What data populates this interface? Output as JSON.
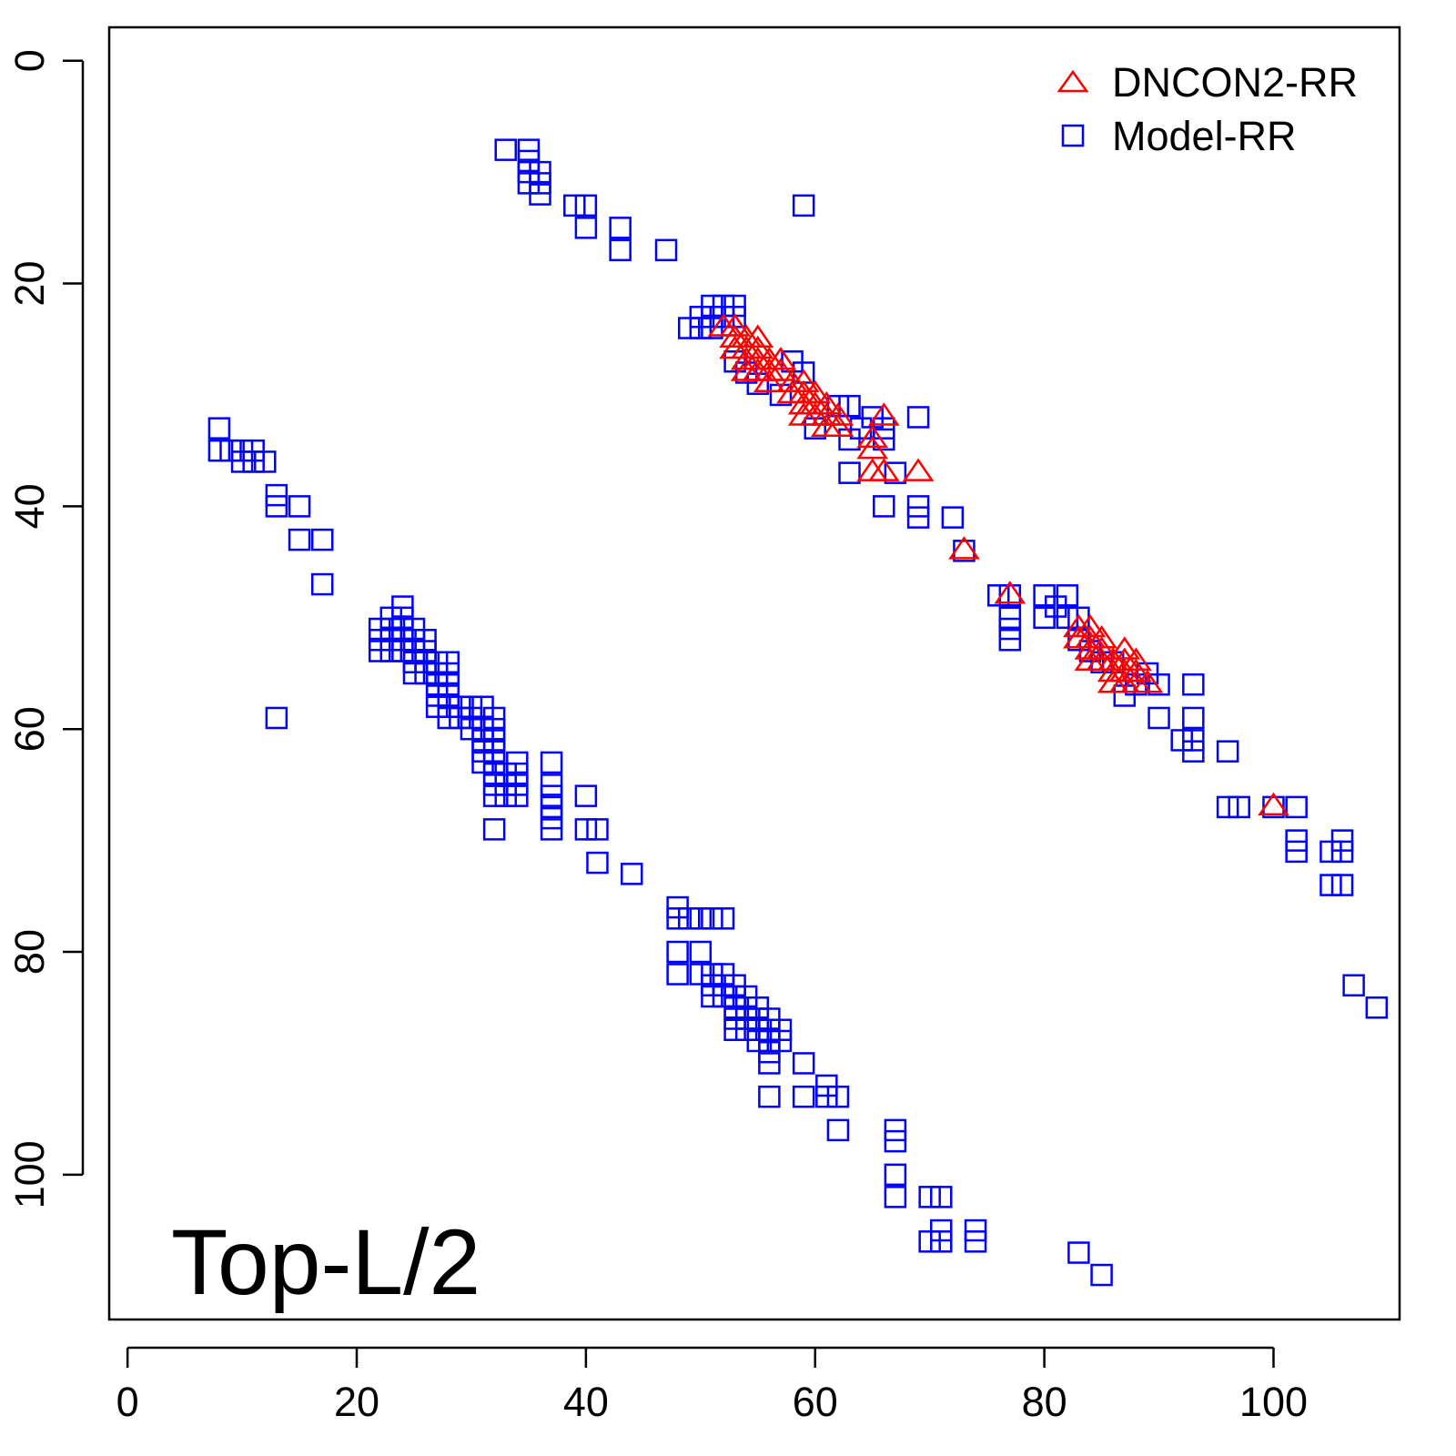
{
  "chart_data": {
    "type": "scatter",
    "title": "",
    "xlabel": "",
    "ylabel": "",
    "xlim": [
      -1.6,
      111
    ],
    "ylim": [
      -3,
      113
    ],
    "y_reversed": true,
    "grid": false,
    "legend_position": "top-right",
    "x_ticks": [
      0,
      20,
      40,
      60,
      80,
      100
    ],
    "y_ticks": [
      0,
      20,
      40,
      60,
      80,
      100
    ],
    "panel_label": "Top-L/2",
    "series": [
      {
        "name": "DNCON2-RR",
        "marker": "triangle",
        "color": "#ff0000",
        "points": [
          [
            52,
            24
          ],
          [
            53,
            24
          ],
          [
            53,
            25
          ],
          [
            53,
            26
          ],
          [
            54,
            25
          ],
          [
            54,
            26
          ],
          [
            54,
            27
          ],
          [
            55,
            25
          ],
          [
            55,
            26
          ],
          [
            55,
            27
          ],
          [
            55,
            28
          ],
          [
            54,
            28
          ],
          [
            56,
            27
          ],
          [
            56,
            28
          ],
          [
            56,
            29
          ],
          [
            57,
            27
          ],
          [
            57,
            28
          ],
          [
            58,
            29
          ],
          [
            58,
            30
          ],
          [
            59,
            29
          ],
          [
            59,
            30
          ],
          [
            59,
            31
          ],
          [
            59,
            32
          ],
          [
            60,
            30
          ],
          [
            60,
            31
          ],
          [
            60,
            32
          ],
          [
            61,
            31
          ],
          [
            61,
            32
          ],
          [
            61,
            33
          ],
          [
            62,
            32
          ],
          [
            62,
            33
          ],
          [
            65,
            34
          ],
          [
            65,
            35
          ],
          [
            66,
            32
          ],
          [
            65,
            37
          ],
          [
            66,
            37
          ],
          [
            69,
            37
          ],
          [
            73,
            44
          ],
          [
            77,
            48
          ],
          [
            83,
            51
          ],
          [
            83,
            52
          ],
          [
            84,
            51
          ],
          [
            84,
            52
          ],
          [
            84,
            53
          ],
          [
            84,
            54
          ],
          [
            85,
            52
          ],
          [
            85,
            53
          ],
          [
            85,
            54
          ],
          [
            86,
            54
          ],
          [
            86,
            55
          ],
          [
            86,
            56
          ],
          [
            87,
            53
          ],
          [
            87,
            54
          ],
          [
            87,
            55
          ],
          [
            87,
            56
          ],
          [
            88,
            54
          ],
          [
            88,
            55
          ],
          [
            88,
            56
          ],
          [
            89,
            56
          ],
          [
            100,
            67
          ]
        ]
      },
      {
        "name": "Model-RR",
        "marker": "square",
        "color": "#0000ff",
        "points": [
          [
            33,
            8
          ],
          [
            35,
            8
          ],
          [
            35,
            9
          ],
          [
            35,
            10
          ],
          [
            35,
            11
          ],
          [
            36,
            10
          ],
          [
            36,
            11
          ],
          [
            36,
            12
          ],
          [
            39,
            13
          ],
          [
            40,
            13
          ],
          [
            40,
            15
          ],
          [
            43,
            15
          ],
          [
            43,
            17
          ],
          [
            47,
            17
          ],
          [
            59,
            13
          ],
          [
            49,
            24
          ],
          [
            50,
            23
          ],
          [
            50,
            24
          ],
          [
            51,
            22
          ],
          [
            51,
            23
          ],
          [
            51,
            24
          ],
          [
            52,
            22
          ],
          [
            52,
            23
          ],
          [
            53,
            22
          ],
          [
            53,
            23
          ],
          [
            53,
            27
          ],
          [
            54,
            28
          ],
          [
            55,
            29
          ],
          [
            57,
            30
          ],
          [
            58,
            27
          ],
          [
            59,
            28
          ],
          [
            60,
            33
          ],
          [
            62,
            31
          ],
          [
            63,
            31
          ],
          [
            63,
            34
          ],
          [
            63,
            37
          ],
          [
            64,
            33
          ],
          [
            65,
            32
          ],
          [
            66,
            33
          ],
          [
            66,
            34
          ],
          [
            67,
            37
          ],
          [
            66,
            40
          ],
          [
            69,
            32
          ],
          [
            69,
            40
          ],
          [
            69,
            41
          ],
          [
            72,
            41
          ],
          [
            73,
            44
          ],
          [
            76,
            48
          ],
          [
            77,
            48
          ],
          [
            77,
            50
          ],
          [
            77,
            51
          ],
          [
            77,
            52
          ],
          [
            80,
            48
          ],
          [
            80,
            50
          ],
          [
            81,
            49
          ],
          [
            82,
            48
          ],
          [
            82,
            50
          ],
          [
            83,
            50
          ],
          [
            83,
            52
          ],
          [
            84,
            53
          ],
          [
            85,
            54
          ],
          [
            86,
            54
          ],
          [
            87,
            57
          ],
          [
            88,
            56
          ],
          [
            89,
            55
          ],
          [
            90,
            56
          ],
          [
            90,
            59
          ],
          [
            92,
            61
          ],
          [
            93,
            56
          ],
          [
            93,
            59
          ],
          [
            93,
            61
          ],
          [
            93,
            62
          ],
          [
            96,
            62
          ],
          [
            96,
            67
          ],
          [
            97,
            67
          ],
          [
            100,
            67
          ],
          [
            102,
            67
          ],
          [
            102,
            70
          ],
          [
            102,
            71
          ],
          [
            105,
            71
          ],
          [
            105,
            74
          ],
          [
            106,
            70
          ],
          [
            106,
            71
          ],
          [
            106,
            74
          ],
          [
            107,
            83
          ],
          [
            109,
            85
          ],
          [
            8,
            33
          ],
          [
            8,
            35
          ],
          [
            9,
            35
          ],
          [
            10,
            35
          ],
          [
            10,
            36
          ],
          [
            11,
            35
          ],
          [
            11,
            36
          ],
          [
            12,
            36
          ],
          [
            13,
            39
          ],
          [
            13,
            40
          ],
          [
            15,
            40
          ],
          [
            15,
            43
          ],
          [
            17,
            43
          ],
          [
            17,
            47
          ],
          [
            13,
            59
          ],
          [
            22,
            51
          ],
          [
            22,
            52
          ],
          [
            22,
            53
          ],
          [
            23,
            50
          ],
          [
            23,
            51
          ],
          [
            23,
            52
          ],
          [
            23,
            53
          ],
          [
            24,
            49
          ],
          [
            24,
            50
          ],
          [
            24,
            51
          ],
          [
            24,
            52
          ],
          [
            24,
            53
          ],
          [
            25,
            51
          ],
          [
            25,
            52
          ],
          [
            25,
            53
          ],
          [
            25,
            54
          ],
          [
            25,
            55
          ],
          [
            26,
            52
          ],
          [
            26,
            53
          ],
          [
            26,
            54
          ],
          [
            26,
            55
          ],
          [
            27,
            54
          ],
          [
            27,
            55
          ],
          [
            27,
            56
          ],
          [
            27,
            57
          ],
          [
            27,
            58
          ],
          [
            28,
            54
          ],
          [
            28,
            55
          ],
          [
            28,
            56
          ],
          [
            28,
            57
          ],
          [
            28,
            58
          ],
          [
            28,
            59
          ],
          [
            29,
            58
          ],
          [
            29,
            59
          ],
          [
            30,
            58
          ],
          [
            30,
            59
          ],
          [
            30,
            60
          ],
          [
            31,
            58
          ],
          [
            31,
            60
          ],
          [
            31,
            61
          ],
          [
            31,
            62
          ],
          [
            31,
            63
          ],
          [
            32,
            59
          ],
          [
            32,
            60
          ],
          [
            32,
            61
          ],
          [
            32,
            62
          ],
          [
            32,
            63
          ],
          [
            32,
            64
          ],
          [
            32,
            65
          ],
          [
            32,
            66
          ],
          [
            33,
            64
          ],
          [
            33,
            65
          ],
          [
            33,
            66
          ],
          [
            34,
            63
          ],
          [
            34,
            64
          ],
          [
            34,
            65
          ],
          [
            34,
            66
          ],
          [
            32,
            69
          ],
          [
            37,
            63
          ],
          [
            37,
            65
          ],
          [
            37,
            66
          ],
          [
            37,
            67
          ],
          [
            37,
            68
          ],
          [
            37,
            69
          ],
          [
            40,
            66
          ],
          [
            40,
            69
          ],
          [
            41,
            69
          ],
          [
            41,
            72
          ],
          [
            44,
            73
          ],
          [
            48,
            76
          ],
          [
            48,
            77
          ],
          [
            48,
            80
          ],
          [
            48,
            82
          ],
          [
            49,
            77
          ],
          [
            50,
            77
          ],
          [
            50,
            80
          ],
          [
            50,
            82
          ],
          [
            51,
            77
          ],
          [
            51,
            82
          ],
          [
            51,
            83
          ],
          [
            51,
            84
          ],
          [
            52,
            77
          ],
          [
            52,
            82
          ],
          [
            52,
            83
          ],
          [
            52,
            84
          ],
          [
            53,
            83
          ],
          [
            53,
            84
          ],
          [
            53,
            85
          ],
          [
            53,
            86
          ],
          [
            53,
            87
          ],
          [
            54,
            84
          ],
          [
            54,
            85
          ],
          [
            54,
            86
          ],
          [
            54,
            87
          ],
          [
            55,
            85
          ],
          [
            55,
            86
          ],
          [
            55,
            87
          ],
          [
            55,
            88
          ],
          [
            56,
            86
          ],
          [
            56,
            87
          ],
          [
            56,
            88
          ],
          [
            56,
            89
          ],
          [
            56,
            90
          ],
          [
            57,
            87
          ],
          [
            57,
            88
          ],
          [
            56,
            93
          ],
          [
            59,
            90
          ],
          [
            59,
            93
          ],
          [
            61,
            92
          ],
          [
            61,
            93
          ],
          [
            62,
            93
          ],
          [
            62,
            96
          ],
          [
            67,
            96
          ],
          [
            67,
            97
          ],
          [
            67,
            100
          ],
          [
            67,
            102
          ],
          [
            70,
            102
          ],
          [
            71,
            102
          ],
          [
            71,
            105
          ],
          [
            71,
            106
          ],
          [
            70,
            106
          ],
          [
            74,
            105
          ],
          [
            74,
            106
          ],
          [
            83,
            107
          ],
          [
            85,
            109
          ]
        ]
      }
    ]
  }
}
